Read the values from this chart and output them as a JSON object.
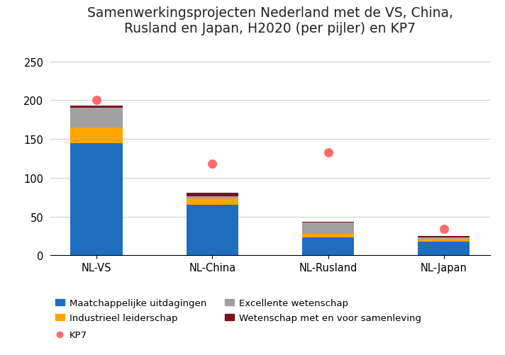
{
  "title": "Samenwerkingsprojecten Nederland met de VS, China,\nRusland en Japan, H2020 (per pijler) en KP7",
  "categories": [
    "NL-VS",
    "NL-China",
    "NL-Rusland",
    "NL-Japan"
  ],
  "maatschappelijke": [
    145,
    65,
    23,
    18
  ],
  "industrieel": [
    20,
    8,
    5,
    3
  ],
  "excellente": [
    25,
    3,
    14,
    2
  ],
  "wetenschap": [
    3,
    5,
    1,
    2
  ],
  "kp7": [
    200,
    118,
    133,
    34
  ],
  "colors": {
    "maatschappelijke": "#1f6dbf",
    "industrieel": "#ffa500",
    "excellente": "#a0a0a0",
    "wetenschap": "#7b1020",
    "kp7": "#ff6b6b"
  },
  "legend_labels": {
    "maatschappelijke": "Maatchappelijke uitdagingen",
    "industrieel": "Industrieel leiderschap",
    "excellente": "Excellente wetenschap",
    "wetenschap": "Wetenschap met en voor samenleving",
    "kp7": "KP7"
  },
  "ylim": [
    0,
    275
  ],
  "yticks": [
    0,
    50,
    100,
    150,
    200,
    250
  ],
  "background_color": "#ffffff",
  "title_fontsize": 13.5,
  "tick_fontsize": 10.5,
  "legend_fontsize": 9.5,
  "bar_width": 0.45
}
